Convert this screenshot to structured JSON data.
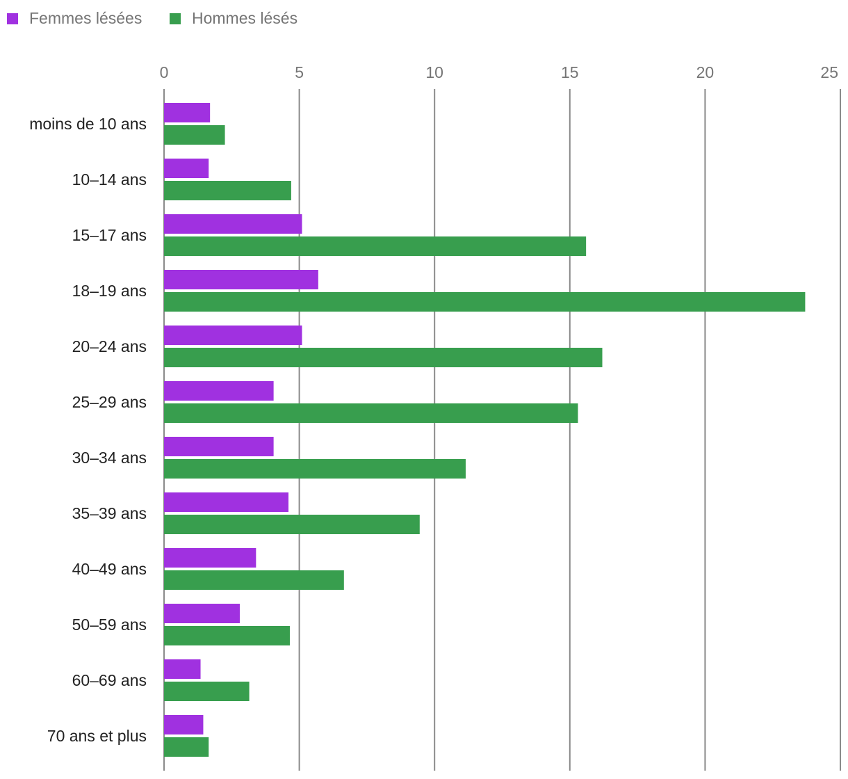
{
  "chart_data": {
    "type": "bar",
    "orientation": "horizontal",
    "categories": [
      "moins de 10 ans",
      "10–14 ans",
      "15–17 ans",
      "18–19 ans",
      "20–24 ans",
      "25–29 ans",
      "30–34 ans",
      "35–39 ans",
      "40–49 ans",
      "50–59 ans",
      "60–69 ans",
      "70 ans et plus"
    ],
    "series": [
      {
        "name": "Femmes lésées",
        "color": "#a031e0",
        "values": [
          1.7,
          1.65,
          5.1,
          5.7,
          5.1,
          4.05,
          4.05,
          4.6,
          3.4,
          2.8,
          1.35,
          1.45
        ]
      },
      {
        "name": "Hommes lésés",
        "color": "#389e4e",
        "values": [
          2.25,
          4.7,
          15.6,
          23.7,
          16.2,
          15.3,
          11.15,
          9.45,
          6.65,
          4.65,
          3.15,
          1.65
        ]
      }
    ],
    "xlim": [
      0,
      25
    ],
    "xticks": [
      0,
      5,
      10,
      15,
      20,
      25
    ],
    "title": "",
    "xlabel": "",
    "ylabel": "",
    "grid": true,
    "legend_position": "top-left"
  }
}
